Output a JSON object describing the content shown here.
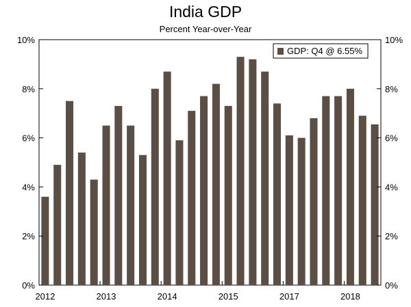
{
  "chart_data": {
    "type": "bar",
    "title": "India GDP",
    "subtitle": "Percent Year-over-Year",
    "xlabel": "",
    "ylabel": "",
    "ylim": [
      0,
      10
    ],
    "y_ticks": [
      "0%",
      "2%",
      "4%",
      "6%",
      "8%",
      "10%"
    ],
    "y_tick_values": [
      0,
      2,
      4,
      6,
      8,
      10
    ],
    "x_labels": [
      "2012",
      "2013",
      "2014",
      "2015",
      "2017",
      "2018"
    ],
    "x_label_index": [
      0,
      5,
      10,
      15,
      20,
      25
    ],
    "categories": [
      "2012 Q1",
      "2012 Q2",
      "2012 Q3",
      "2012 Q4",
      "2013 Q1",
      "2013 Q2",
      "2013 Q3",
      "2013 Q4",
      "2014 Q1",
      "2014 Q2",
      "2014 Q3",
      "2014 Q4",
      "2015 Q1",
      "2015 Q2",
      "2015 Q3",
      "2015 Q4",
      "2016 Q1",
      "2016 Q2",
      "2016 Q3",
      "2016 Q4",
      "2017 Q1",
      "2017 Q2",
      "2017 Q3",
      "2017 Q4",
      "2018 Q1",
      "2018 Q2",
      "2018 Q3",
      "2018 Q4"
    ],
    "series": [
      {
        "name": "GDP: Q4 @ 6.55%",
        "values": [
          3.6,
          4.9,
          7.5,
          5.4,
          4.3,
          6.5,
          7.3,
          6.5,
          5.3,
          8.0,
          8.7,
          5.9,
          7.1,
          7.7,
          8.2,
          7.3,
          9.3,
          9.2,
          8.7,
          7.4,
          6.1,
          6.0,
          6.8,
          7.7,
          7.7,
          8.0,
          6.9,
          6.55
        ]
      }
    ],
    "legend": {
      "label": "GDP: Q4 @ 6.55%",
      "position": "top-right"
    },
    "colors": {
      "bar": "#5b4f45",
      "axis": "#000000",
      "background": "#ffffff"
    }
  }
}
